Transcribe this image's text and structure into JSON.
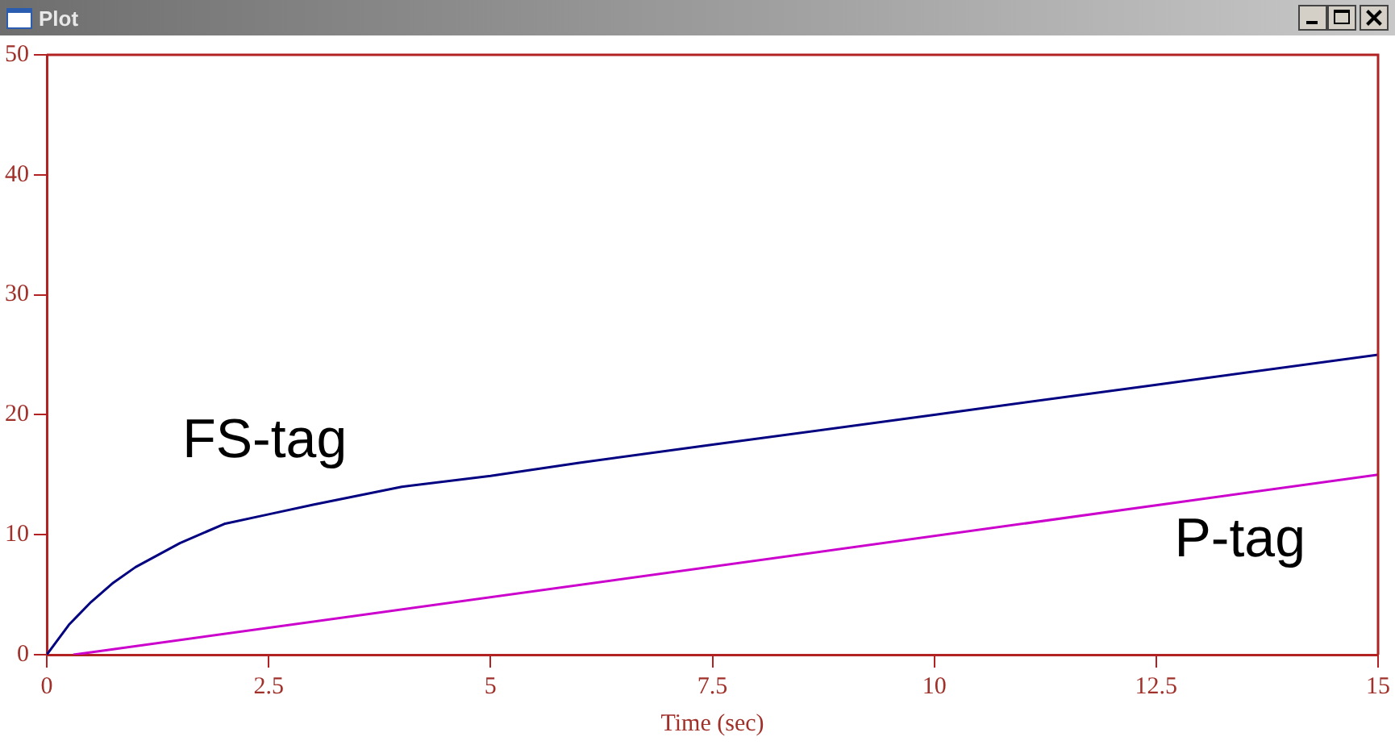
{
  "chart_data": {
    "type": "line",
    "title": "Plot",
    "xlabel": "Time (sec)",
    "xlim": [
      0,
      15
    ],
    "xticks": [
      0,
      2.5,
      5,
      7.5,
      10,
      12.5,
      15
    ],
    "ylim": [
      0,
      50
    ],
    "yticks": [
      0,
      10,
      20,
      30,
      40,
      50
    ],
    "grid": false,
    "legend": false,
    "marker": "none",
    "line_style": "solid",
    "series": [
      {
        "name": "FS-tag",
        "color": "#000080",
        "x": [
          0,
          0.25,
          0.5,
          0.75,
          1,
          1.5,
          2,
          2.5,
          3,
          4,
          5,
          6,
          7.5,
          10,
          12.5,
          15
        ],
        "values": [
          0,
          2.5,
          4.4,
          6,
          7.3,
          9.3,
          10.9,
          11.7,
          12.5,
          14,
          14.9,
          16,
          17.5,
          20,
          22.5,
          25
        ]
      },
      {
        "name": "P-tag",
        "color": "#cc00cc",
        "x": [
          0.3,
          0.6,
          15
        ],
        "values": [
          0,
          0.3,
          15
        ]
      }
    ]
  }
}
